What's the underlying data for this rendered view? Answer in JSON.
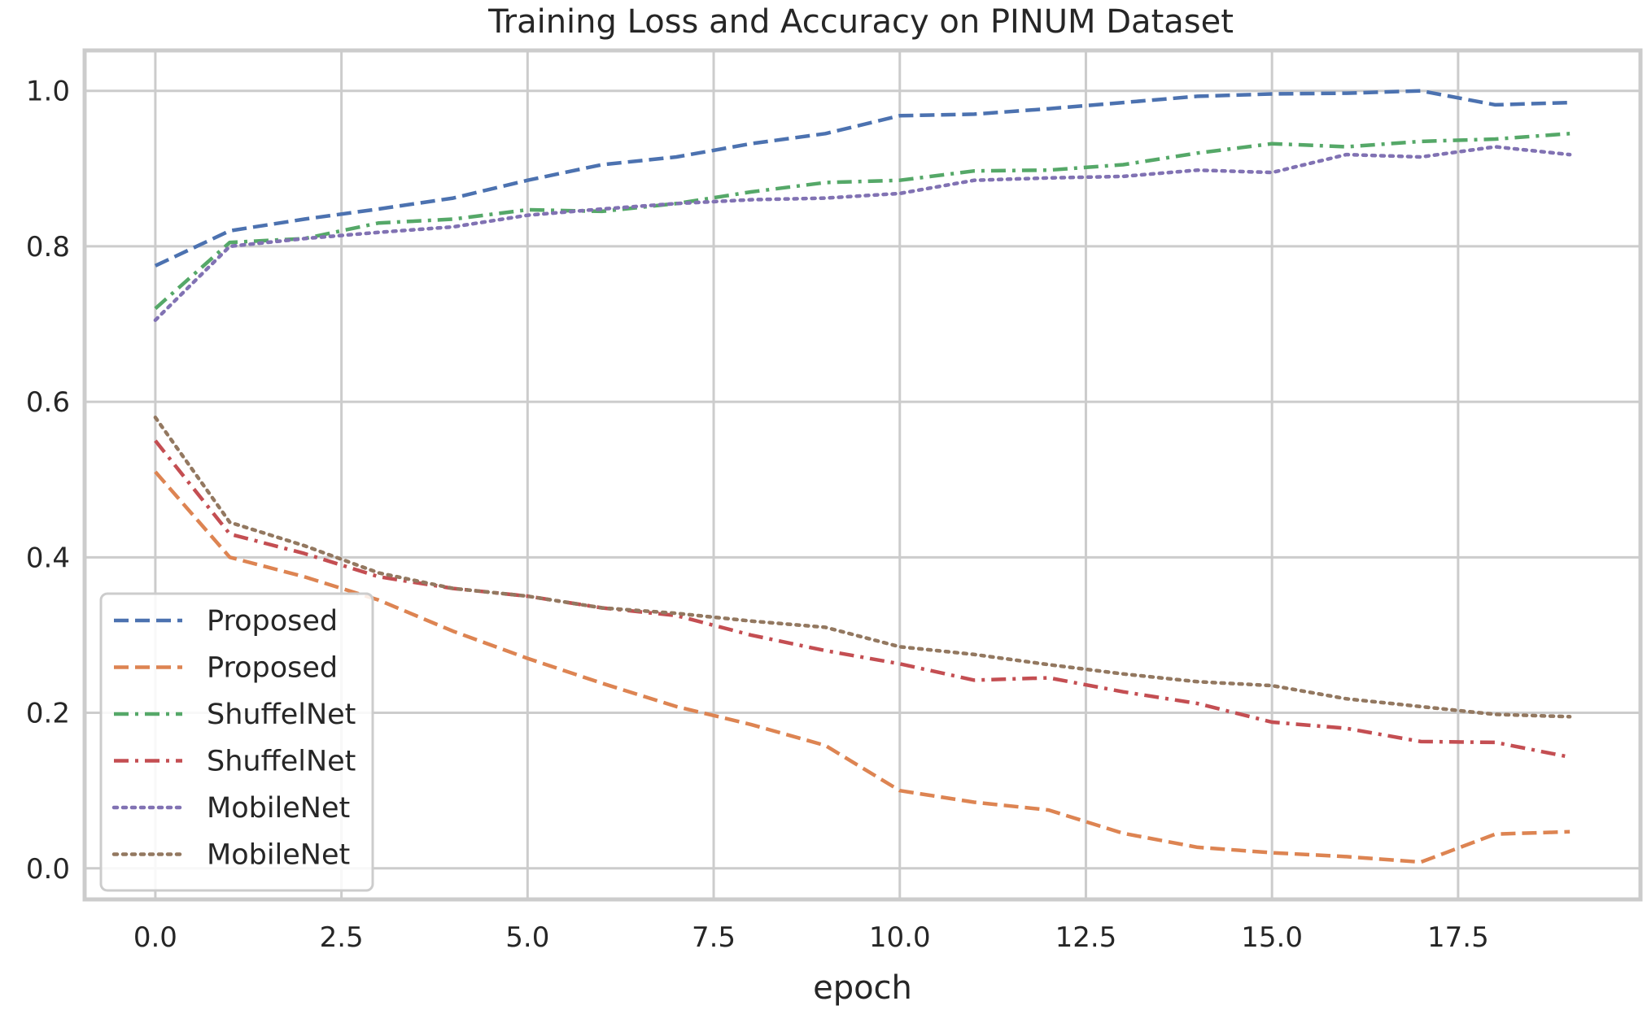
{
  "chart_data": {
    "type": "line",
    "title": "Training Loss and Accuracy on PINUM Dataset",
    "xlabel": "epoch",
    "ylabel": "",
    "xlim": [
      -0.95,
      19.95
    ],
    "ylim": [
      -0.04,
      1.052
    ],
    "xticks": [
      0.0,
      2.5,
      5.0,
      7.5,
      10.0,
      12.5,
      15.0,
      17.5
    ],
    "xtick_labels": [
      "0.0",
      "2.5",
      "5.0",
      "7.5",
      "10.0",
      "12.5",
      "15.0",
      "17.5"
    ],
    "yticks": [
      0.0,
      0.2,
      0.4,
      0.6,
      0.8,
      1.0
    ],
    "ytick_labels": [
      "0.0",
      "0.2",
      "0.4",
      "0.6",
      "0.8",
      "1.0"
    ],
    "grid": true,
    "legend_position": "lower-left",
    "x": [
      0,
      1,
      2,
      3,
      4,
      5,
      6,
      7,
      8,
      9,
      10,
      11,
      12,
      13,
      14,
      15,
      16,
      17,
      18,
      19
    ],
    "series": [
      {
        "name": "Proposed",
        "key": "proposed-acc",
        "color": "#4c72b0",
        "style": "dashed",
        "values": [
          0.775,
          0.82,
          0.835,
          0.848,
          0.862,
          0.885,
          0.905,
          0.915,
          0.932,
          0.945,
          0.968,
          0.97,
          0.977,
          0.985,
          0.993,
          0.996,
          0.997,
          1.0,
          0.982,
          0.985
        ]
      },
      {
        "name": "Proposed",
        "key": "proposed-loss",
        "color": "#dd8452",
        "style": "dashed",
        "values": [
          0.51,
          0.4,
          0.375,
          0.345,
          0.305,
          0.27,
          0.238,
          0.208,
          0.185,
          0.158,
          0.1,
          0.085,
          0.075,
          0.045,
          0.027,
          0.02,
          0.015,
          0.008,
          0.044,
          0.047
        ]
      },
      {
        "name": "ShuffelNet",
        "key": "shufflenet-acc",
        "color": "#55a868",
        "style": "dashdot",
        "values": [
          0.72,
          0.805,
          0.81,
          0.83,
          0.835,
          0.847,
          0.845,
          0.855,
          0.87,
          0.882,
          0.885,
          0.897,
          0.898,
          0.905,
          0.92,
          0.932,
          0.928,
          0.935,
          0.938,
          0.945
        ]
      },
      {
        "name": "ShuffelNet",
        "key": "shufflenet-loss",
        "color": "#c44e52",
        "style": "dashdot",
        "values": [
          0.55,
          0.43,
          0.405,
          0.375,
          0.36,
          0.35,
          0.335,
          0.325,
          0.3,
          0.28,
          0.263,
          0.242,
          0.245,
          0.227,
          0.212,
          0.188,
          0.18,
          0.163,
          0.162,
          0.143
        ]
      },
      {
        "name": "MobileNet",
        "key": "mobilenet-acc",
        "color": "#8172b3",
        "style": "dotted",
        "values": [
          0.705,
          0.8,
          0.81,
          0.818,
          0.825,
          0.84,
          0.848,
          0.855,
          0.86,
          0.862,
          0.868,
          0.885,
          0.888,
          0.89,
          0.898,
          0.895,
          0.918,
          0.915,
          0.928,
          0.918
        ]
      },
      {
        "name": "MobileNet",
        "key": "mobilenet-loss",
        "color": "#937860",
        "style": "dotted",
        "values": [
          0.58,
          0.445,
          0.415,
          0.38,
          0.36,
          0.35,
          0.335,
          0.328,
          0.318,
          0.31,
          0.285,
          0.275,
          0.262,
          0.25,
          0.24,
          0.235,
          0.218,
          0.208,
          0.198,
          0.195
        ]
      }
    ]
  }
}
